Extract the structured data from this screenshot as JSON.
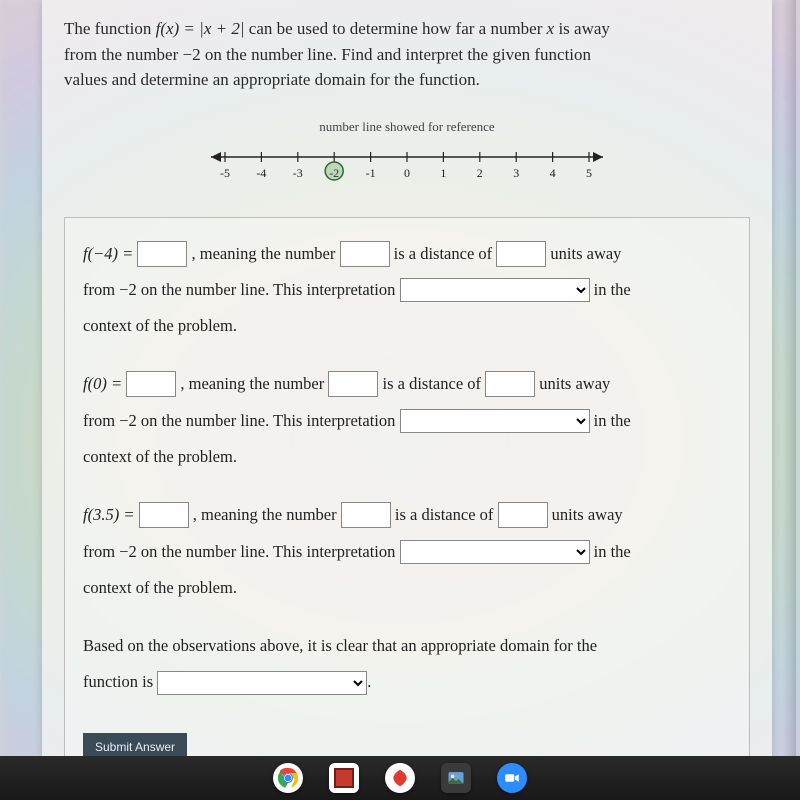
{
  "problem": {
    "line1_pre": "The function ",
    "func_lhs": "f(x) = |x + 2|",
    "line1_post": " can be used to determine how far a number ",
    "var": "x",
    "line1_end": " is away",
    "line2": "from the number −2 on the number line. Find and interpret the given function",
    "line3": "values and determine an appropriate domain for the function."
  },
  "numberline": {
    "caption": "number line showed for reference",
    "min": -5,
    "max": 5,
    "ticks": [
      "-5",
      "-4",
      "-3",
      "-2",
      "-1",
      "0",
      "1",
      "2",
      "3",
      "4",
      "5"
    ],
    "highlight_value": -2,
    "axis_color": "#222222",
    "tick_fontsize": 12
  },
  "rows": [
    {
      "f_arg": "−4",
      "from_val": "−2"
    },
    {
      "f_arg": "0",
      "from_val": "−2"
    },
    {
      "f_arg": "3.5",
      "from_val": "−2"
    }
  ],
  "phrases": {
    "meaning": ", meaning the number",
    "is_distance": "is a distance of",
    "units_away": "units away",
    "from": "from ",
    "on_line": " on the number line. This interpretation",
    "in_the": "in the",
    "context": "context of the problem.",
    "conclusion1": "Based on the observations above, it is clear that an appropriate domain for the",
    "conclusion2_pre": "function is"
  },
  "submit_label": "Submit Answer",
  "taskbar": {
    "items": [
      {
        "name": "chrome",
        "bg": "#ffffff"
      },
      {
        "name": "app-red-square",
        "bg": "#c43b2e"
      },
      {
        "name": "app-swirl",
        "bg": "#ffffff"
      },
      {
        "name": "app-photo",
        "bg": "#3a3a3a"
      },
      {
        "name": "zoom",
        "bg": "#2d8cff"
      }
    ]
  },
  "colors": {
    "page_bg": "#f6f6f2",
    "border": "#bdbdbd",
    "text": "#222222"
  }
}
